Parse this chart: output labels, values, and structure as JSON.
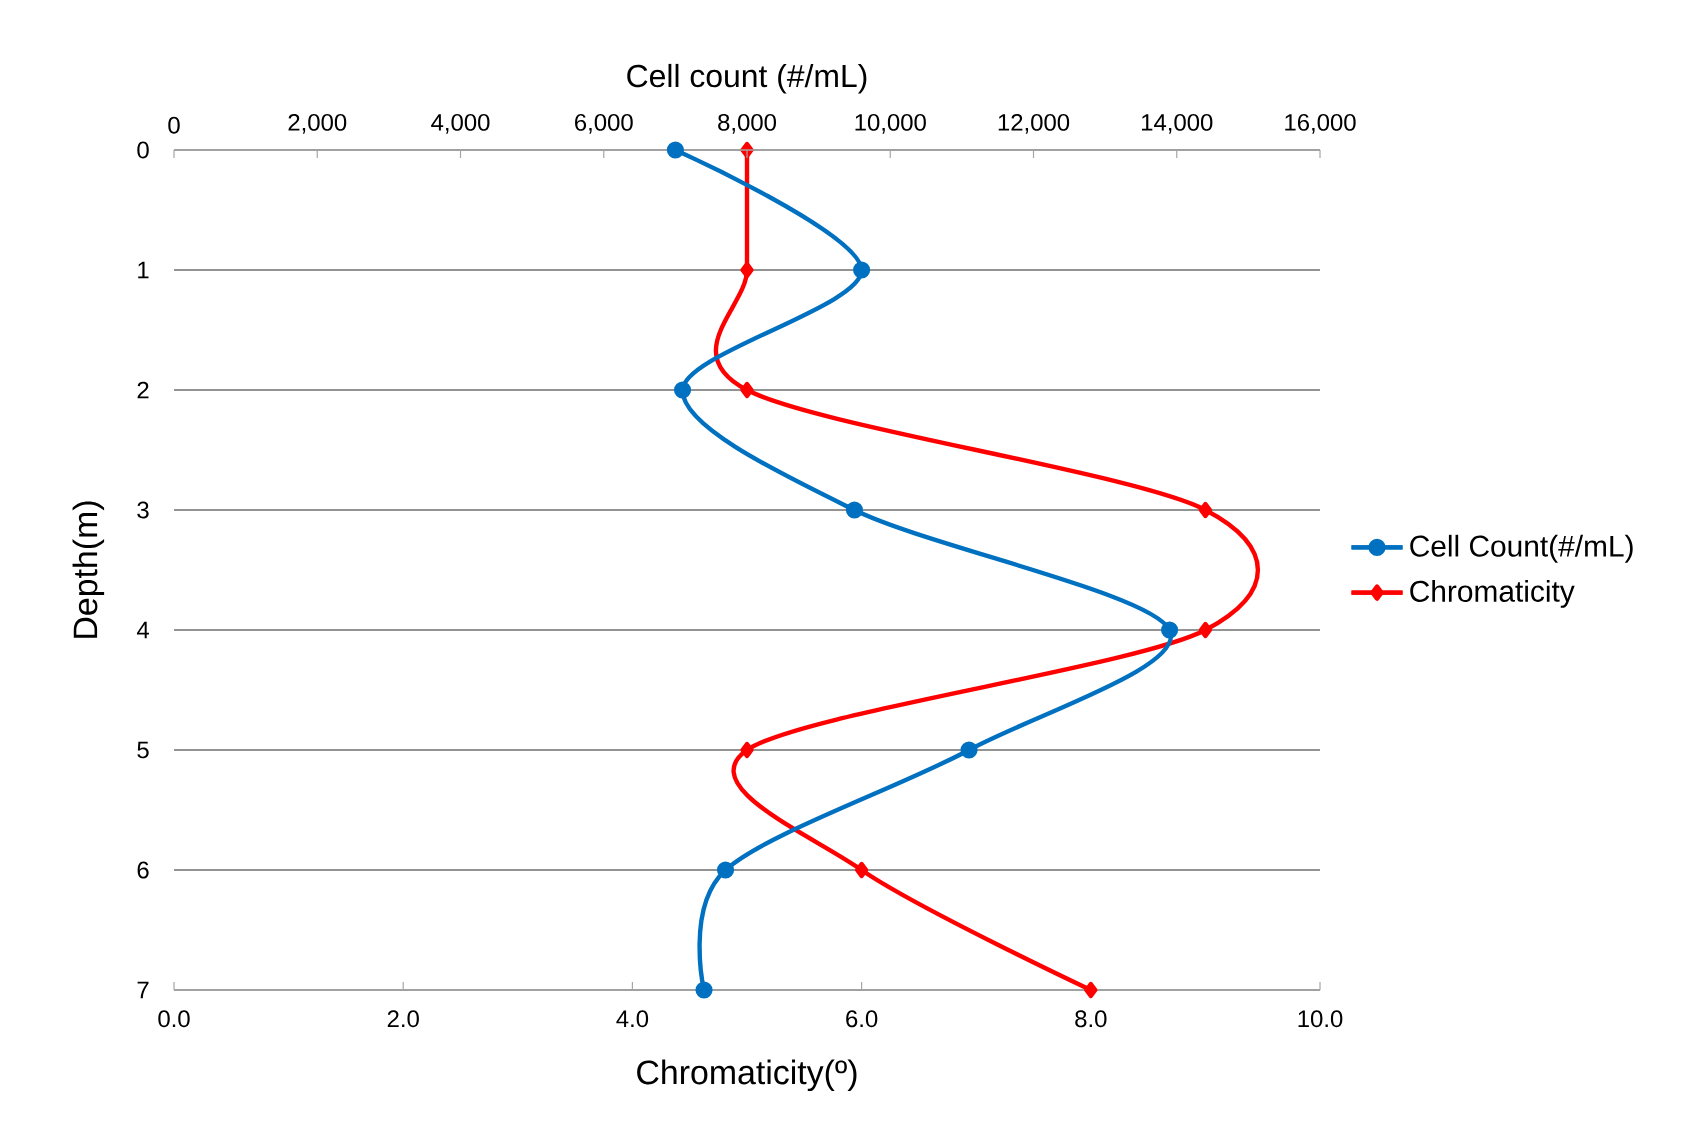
{
  "chart_data": {
    "type": "line",
    "xlabel": "Chromaticity(º)",
    "x2label": "Cell count (#/mL)",
    "ylabel": "Depth(m)",
    "xlim": [
      0,
      10
    ],
    "xticks": [
      {
        "value": 0,
        "label": "0.0"
      },
      {
        "value": 2,
        "label": "2.0"
      },
      {
        "value": 4,
        "label": "4.0"
      },
      {
        "value": 6,
        "label": "6.0"
      },
      {
        "value": 8,
        "label": "8.0"
      },
      {
        "value": 10,
        "label": "10.0"
      }
    ],
    "x2lim": [
      0,
      16000
    ],
    "x2ticks": [
      0,
      {
        "value": 2000,
        "label": "2,000"
      },
      {
        "value": 4000,
        "label": "4,000"
      },
      {
        "value": 6000,
        "label": "6,000"
      },
      {
        "value": 8000,
        "label": "8,000"
      },
      {
        "value": 10000,
        "label": "10,000"
      },
      {
        "value": 12000,
        "label": "12,000"
      },
      {
        "value": 14000,
        "label": "14,000"
      },
      {
        "value": 16000,
        "label": "16,000"
      }
    ],
    "ylim": [
      7,
      0
    ],
    "yticks": [
      0,
      1,
      2,
      3,
      4,
      5,
      6,
      7
    ],
    "grid": "y",
    "legend": "right",
    "series": [
      {
        "name": "Cell Count(#/mL)",
        "color": "#0070c0",
        "axis": "x2",
        "marker": "circle",
        "x": [
          7000,
          9600,
          7100,
          9500,
          13900,
          11100,
          7700,
          7400
        ],
        "values": [
          0,
          1,
          2,
          3,
          4,
          5,
          6,
          7
        ]
      },
      {
        "name": "Chromaticity",
        "color": "#ff0000",
        "marker": "diamond",
        "x": [
          5.0,
          5.0,
          5.0,
          9.0,
          9.0,
          5.0,
          6.0,
          8.0
        ],
        "values": [
          0,
          1,
          2,
          3,
          4,
          5,
          6,
          7
        ]
      }
    ]
  }
}
